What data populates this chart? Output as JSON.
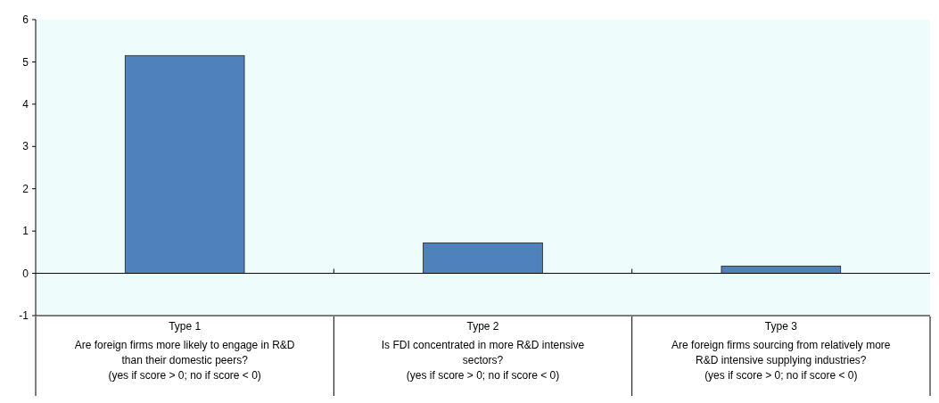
{
  "chart_data": {
    "type": "bar",
    "categories": [
      "Type 1\nAre foreign firms more likely to engage in R&D\nthan their domestic peers?\n(yes if score > 0; no if score < 0)",
      "Type 2\nIs FDI concentrated in more R&D intensive\nsectors?\n(yes if score > 0; no if score < 0)",
      "Type 3\nAre foreign firms sourcing from relatively more\nR&D intensive supplying industries?\n(yes if score > 0; no if score < 0)"
    ],
    "values": [
      5.15,
      0.72,
      0.17
    ],
    "color": "#4f81bd",
    "ylim": [
      -1,
      6
    ],
    "yticks": [
      -1,
      0,
      1,
      2,
      3,
      4,
      5,
      6
    ]
  }
}
